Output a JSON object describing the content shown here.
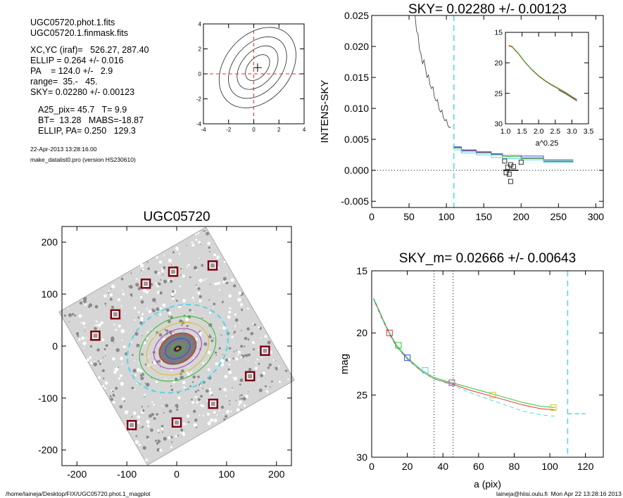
{
  "header": {
    "lines1": [
      "UGC05720.phot.1.fits",
      "UGC05720.1.finmask.fits"
    ],
    "lines2": [
      "XC,YC (iraf)=   526.27, 287.40",
      "ELLIP = 0.264 +/- 0.016",
      "PA    = 124.0 +/-   2.9",
      "range=  35.-   45.",
      "SKY= 0.02280 +/- 0.00123"
    ],
    "lines3": [
      "A25_pix= 45.7   T= 9.9",
      "BT=  13.28   MABS=-18.87",
      "ELLIP, PA= 0.250   129.3"
    ],
    "date": "22-Apr-2013 13:28:16.00",
    "program": "make_datalist0.pro (version HS230610)"
  },
  "footer": {
    "left": "/home/laineja/Desktop/FIX/UGC05720.phot.1_magplot",
    "right": "laineja@hiisi.oulu.fi  Mon Apr 22 13:28:16 2013"
  },
  "colors": {
    "cyan": "#4fd8e8",
    "red": "#e03030",
    "green": "#30c030",
    "blue": "#3050e0",
    "magenta": "#b040c0",
    "yellow": "#d8c030",
    "grey": "#888888"
  },
  "chart_data": [
    {
      "id": "contour",
      "type": "contour",
      "title": "",
      "xlim": [
        -4,
        4
      ],
      "ylim": [
        -4,
        4
      ],
      "xticks": [
        -4,
        -2,
        0,
        2,
        4
      ],
      "yticks": [
        -4,
        -2,
        0,
        2,
        4
      ],
      "center": [
        0.3,
        0.5
      ],
      "contours": [
        {
          "a": 3.6,
          "b": 2.6,
          "rot": 50
        },
        {
          "a": 2.8,
          "b": 1.9,
          "rot": 50
        },
        {
          "a": 2.0,
          "b": 1.3,
          "rot": 50
        },
        {
          "a": 1.2,
          "b": 0.75,
          "rot": 50
        }
      ]
    },
    {
      "id": "sky",
      "type": "line",
      "title": "SKY= 0.02280 +/- 0.00123",
      "xlabel": "",
      "ylabel": "INTENS-SKY",
      "xlim": [
        0,
        310
      ],
      "ylim": [
        -0.006,
        0.025
      ],
      "xticks": [
        0,
        50,
        100,
        150,
        200,
        250,
        300
      ],
      "yticks": [
        -0.005,
        0.0,
        0.005,
        0.01,
        0.015,
        0.02,
        0.025
      ],
      "ytick_labels": [
        "-0.005",
        "0.000",
        "0.005",
        "0.010",
        "0.015",
        "0.020",
        "0.025"
      ],
      "vline": 110,
      "profile": [
        [
          58,
          0.025
        ],
        [
          60,
          0.0225
        ],
        [
          62,
          0.022
        ],
        [
          64,
          0.0195
        ],
        [
          66,
          0.0188
        ],
        [
          68,
          0.0172
        ],
        [
          70,
          0.0178
        ],
        [
          72,
          0.0165
        ],
        [
          74,
          0.015
        ],
        [
          76,
          0.0154
        ],
        [
          78,
          0.0138
        ],
        [
          80,
          0.0132
        ],
        [
          82,
          0.0135
        ],
        [
          84,
          0.0118
        ],
        [
          86,
          0.0112
        ],
        [
          88,
          0.0114
        ],
        [
          90,
          0.01
        ],
        [
          92,
          0.0094
        ],
        [
          94,
          0.0097
        ],
        [
          96,
          0.0085
        ],
        [
          98,
          0.008
        ],
        [
          100,
          0.0082
        ],
        [
          102,
          0.0072
        ],
        [
          104,
          0.0069
        ],
        [
          106,
          0.007
        ]
      ],
      "steps": [
        {
          "color": "blue",
          "x": [
            110,
            120,
            140,
            160,
            175,
            200,
            230,
            270
          ],
          "y": [
            0.0038,
            0.0033,
            0.003,
            0.0026,
            0.0024,
            0.0023,
            0.0017,
            0.0013
          ]
        },
        {
          "color": "green",
          "x": [
            110,
            120,
            140,
            160,
            175,
            200,
            230,
            270
          ],
          "y": [
            0.0036,
            0.0031,
            0.0028,
            0.0025,
            0.0022,
            0.0019,
            0.0015,
            0.0011
          ]
        },
        {
          "color": "magenta",
          "x": [
            110,
            120,
            140,
            160,
            175,
            200,
            230,
            270
          ],
          "y": [
            0.0037,
            0.0032,
            0.0029,
            0.0027,
            0.0024,
            0.002,
            0.0014,
            0.0012
          ]
        },
        {
          "color": "cyan",
          "x": [
            110,
            120,
            140,
            160,
            175,
            200,
            230,
            270
          ],
          "y": [
            0.0033,
            0.0028,
            0.0025,
            0.0021,
            0.0019,
            0.0017,
            0.0013,
            0.0011
          ]
        }
      ],
      "squares": [
        [
          178,
          0.0015
        ],
        [
          182,
          0.0005
        ],
        [
          186,
          0.0009
        ],
        [
          180,
          -0.0004
        ],
        [
          184,
          -0.0006
        ],
        [
          186,
          -0.0018
        ],
        [
          200,
          0.0013
        ],
        [
          190,
          0.0006
        ]
      ],
      "inset": {
        "xlabel": "a^0.25",
        "xlim": [
          1.0,
          3.5
        ],
        "ylim": [
          30,
          15
        ],
        "xticks": [
          1.0,
          1.5,
          2.0,
          2.5,
          3.0,
          3.5
        ],
        "xtick_labels": [
          "1.0",
          "1.5",
          "2.0",
          "2.5",
          "3.0",
          "3.5"
        ],
        "yticks": [
          15,
          20,
          25,
          30
        ],
        "x": [
          1.1,
          1.2,
          1.4,
          1.6,
          1.8,
          2.0,
          2.2,
          2.4,
          2.6,
          2.8,
          3.0,
          3.15
        ],
        "y": [
          17.2,
          17.4,
          18.6,
          20.0,
          21.2,
          22.2,
          23.0,
          23.7,
          24.3,
          24.9,
          25.6,
          26.1
        ]
      }
    },
    {
      "id": "image",
      "type": "scatter",
      "title": "UGC05720",
      "xlim": [
        -230,
        230
      ],
      "ylim": [
        -230,
        230
      ],
      "xticks": [
        -200,
        -100,
        0,
        100,
        200
      ],
      "yticks": [
        -200,
        -100,
        0,
        100,
        200
      ],
      "field_rot": -30,
      "ellipse_center": [
        2,
        -5
      ],
      "ellipses": [
        {
          "a": 105,
          "b": 80,
          "rot": 25,
          "color": "cyan",
          "dash": true
        },
        {
          "a": 80,
          "b": 58,
          "rot": 25,
          "color": "green"
        },
        {
          "a": 65,
          "b": 47,
          "rot": 25,
          "color": "yellow"
        },
        {
          "a": 50,
          "b": 36,
          "rot": 25,
          "color": "magenta"
        },
        {
          "a": 38,
          "b": 27,
          "rot": 25,
          "color": "red"
        },
        {
          "a": 26,
          "b": 18,
          "rot": 25,
          "color": "blue"
        },
        {
          "a": 14,
          "b": 10,
          "rot": 25,
          "color": "green"
        }
      ],
      "squares": [
        [
          -163,
          20
        ],
        [
          -123,
          61
        ],
        [
          -62,
          120
        ],
        [
          -7,
          143
        ],
        [
          72,
          155
        ],
        [
          177,
          -9
        ],
        [
          147,
          -58
        ],
        [
          73,
          -111
        ],
        [
          0,
          -147
        ],
        [
          -90,
          -152
        ]
      ]
    },
    {
      "id": "mag",
      "type": "line",
      "title": "SKY_m=  0.02666 +/- 0.00643",
      "xlabel": "a (pix)",
      "ylabel": "mag",
      "xlim": [
        0,
        130
      ],
      "ylim": [
        30,
        15
      ],
      "xticks": [
        0,
        20,
        40,
        60,
        80,
        100,
        120
      ],
      "yticks": [
        15,
        20,
        25,
        30
      ],
      "vlines_dotted": [
        35,
        45.7
      ],
      "vline_dashed": 110,
      "series": [
        {
          "color": "green",
          "x": [
            1,
            3,
            6,
            10,
            14,
            20,
            28,
            35,
            45,
            55,
            65,
            75,
            85,
            95,
            103
          ],
          "y": [
            17.2,
            17.8,
            18.8,
            20.0,
            21.0,
            22.0,
            23.0,
            23.6,
            24.0,
            24.4,
            24.8,
            25.2,
            25.6,
            25.9,
            26.0
          ]
        },
        {
          "color": "red",
          "x": [
            1,
            3,
            6,
            10,
            14,
            20,
            28,
            35,
            45,
            55,
            65,
            75,
            85,
            95,
            103
          ],
          "y": [
            17.3,
            17.9,
            18.9,
            20.1,
            21.1,
            22.1,
            23.1,
            23.7,
            24.1,
            24.6,
            25.0,
            25.4,
            25.8,
            26.1,
            26.2
          ]
        },
        {
          "color": "cyan",
          "x": [
            1,
            3,
            6,
            10,
            14,
            20,
            28,
            35,
            45,
            55,
            65,
            75,
            85,
            95,
            103
          ],
          "y": [
            17.3,
            17.9,
            18.9,
            20.1,
            21.1,
            22.1,
            23.1,
            23.7,
            24.2,
            24.8,
            25.3,
            25.8,
            26.3,
            26.6,
            26.7
          ]
        }
      ],
      "cyan_tail": {
        "x": [
          110,
          120
        ],
        "y": [
          26.5,
          26.5
        ]
      },
      "squares": [
        {
          "x": 10,
          "y": 20.0,
          "color": "red"
        },
        {
          "x": 15,
          "y": 21.0,
          "color": "green"
        },
        {
          "x": 20,
          "y": 22.0,
          "color": "blue"
        },
        {
          "x": 30,
          "y": 23.0,
          "color": "cyan"
        },
        {
          "x": 45,
          "y": 24.0,
          "color": "magenta"
        },
        {
          "x": 68,
          "y": 25.0,
          "color": "yellow"
        },
        {
          "x": 102,
          "y": 26.0,
          "color": "yellow"
        }
      ]
    }
  ]
}
